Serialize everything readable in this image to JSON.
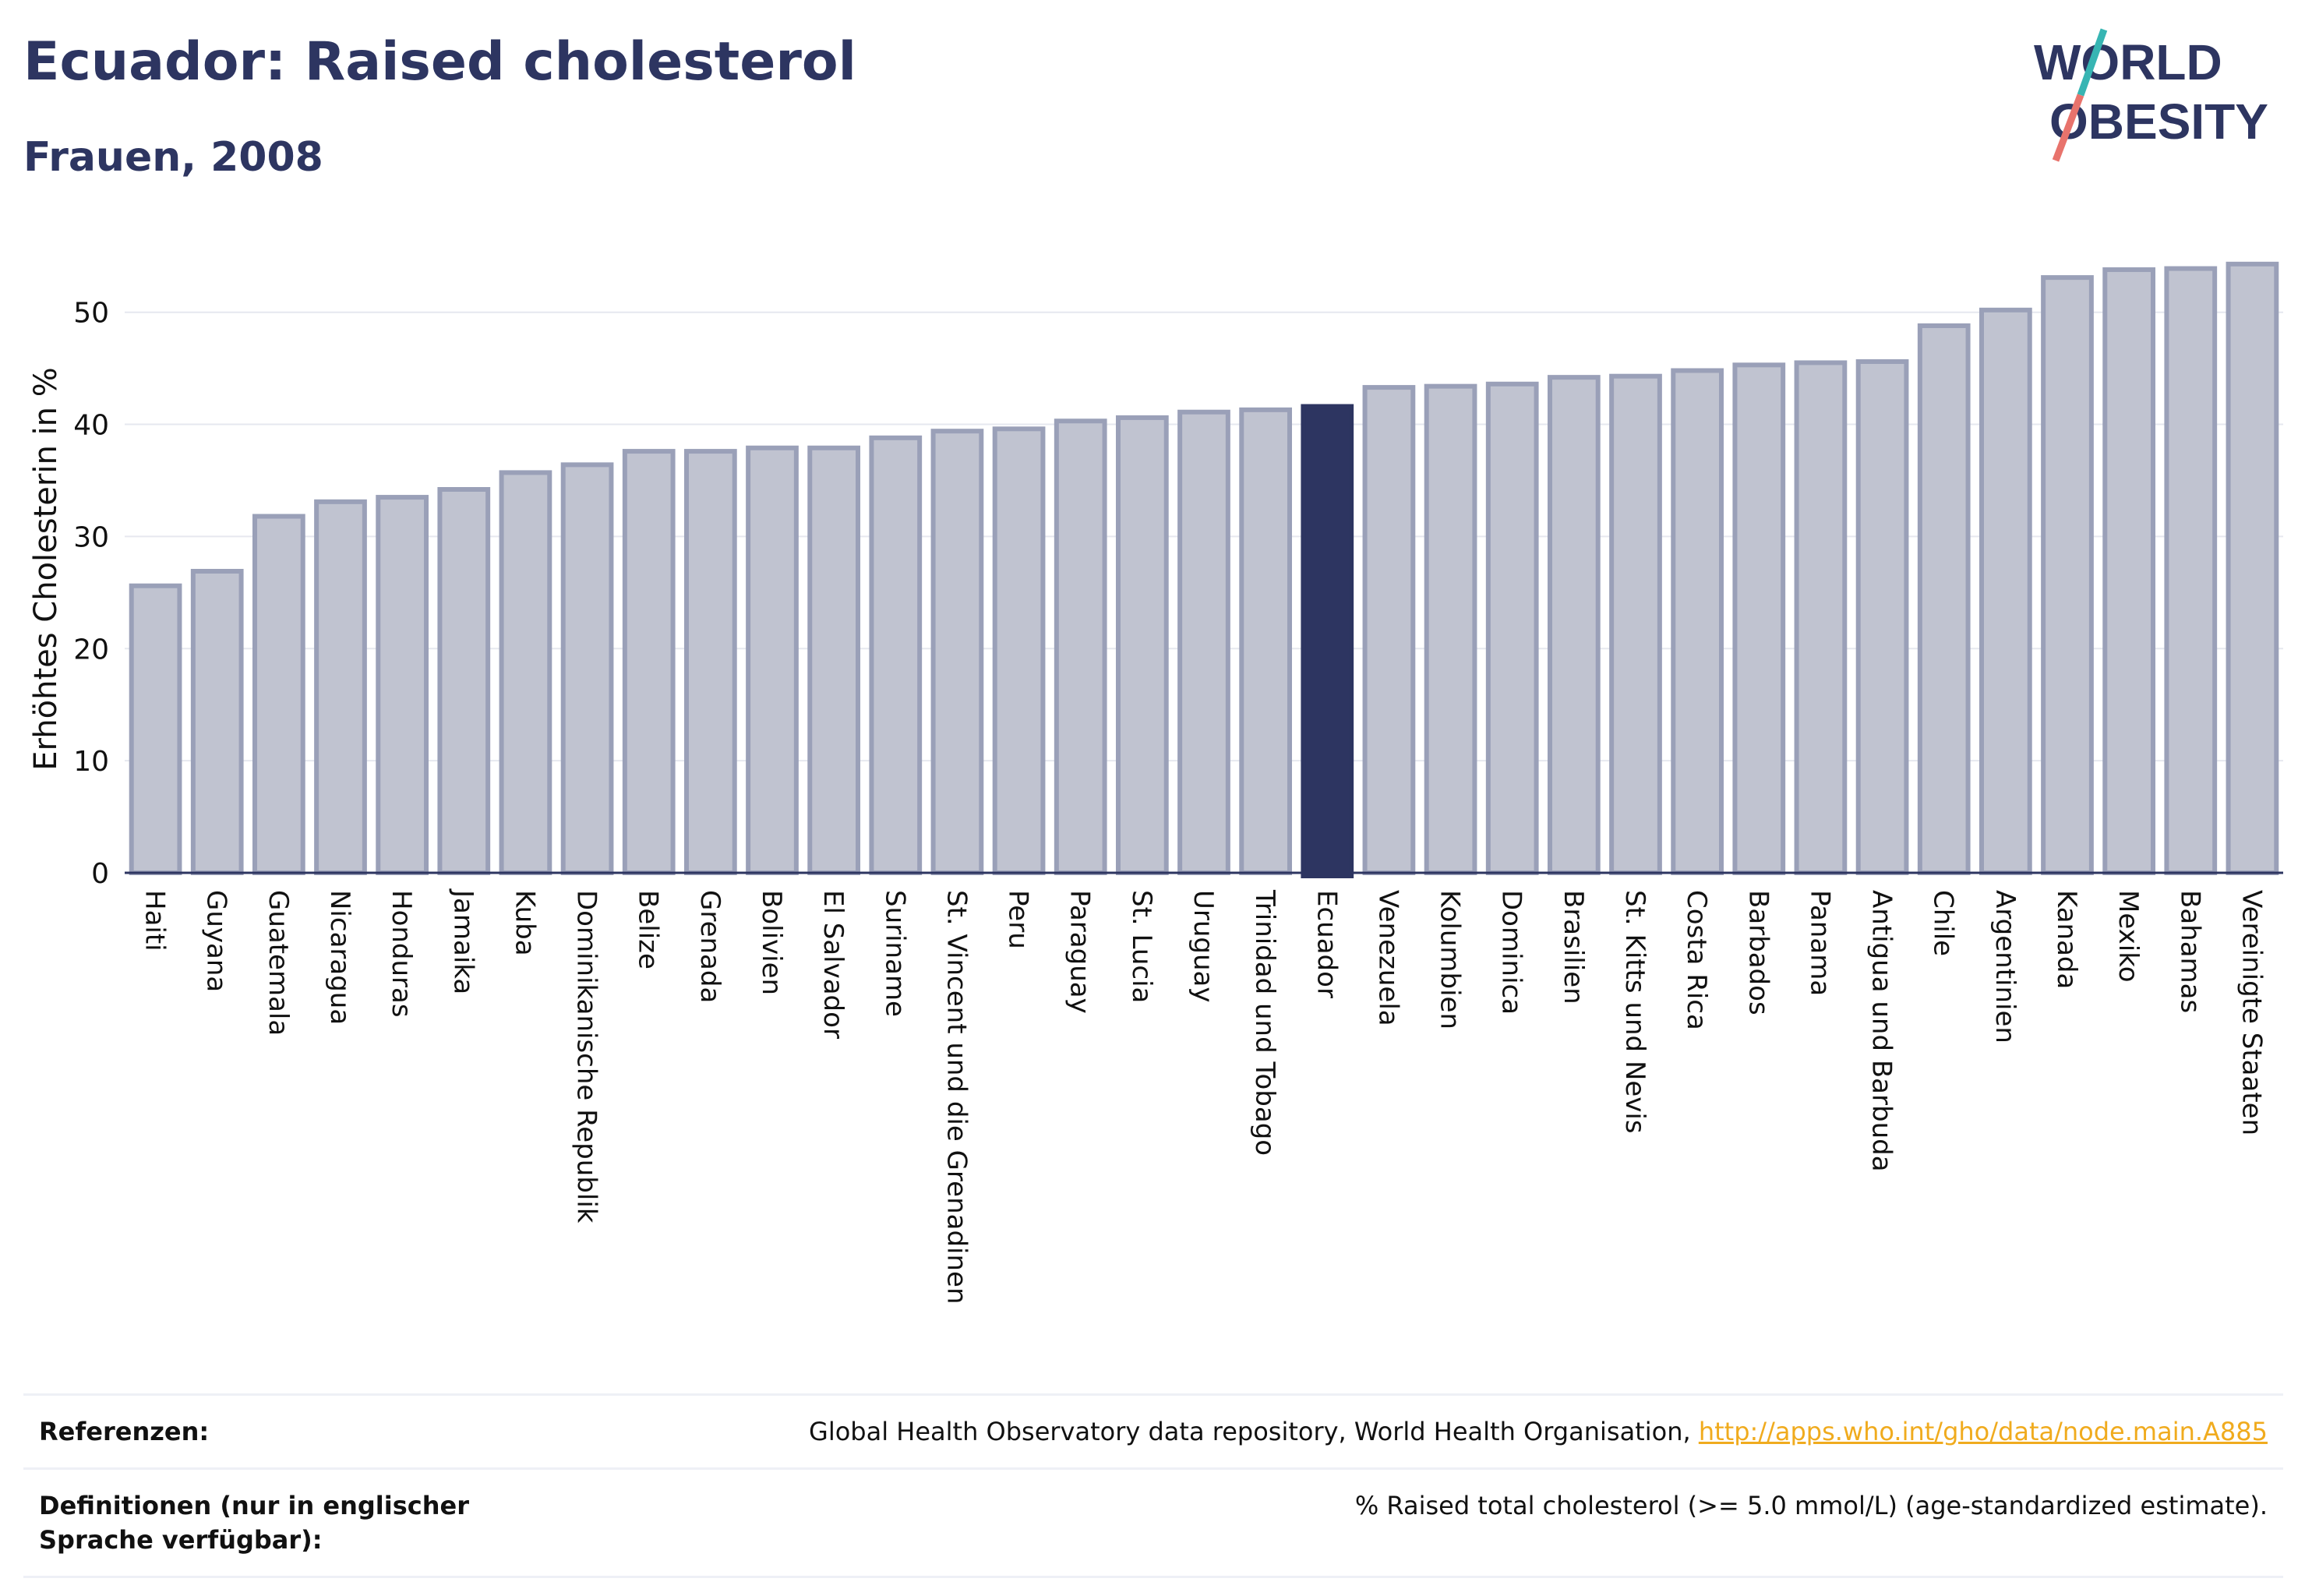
{
  "header": {
    "title": "Ecuador: Raised cholesterol",
    "subtitle": "Frauen, 2008"
  },
  "logo": {
    "line1": "WORLD",
    "line2": "OBESITY",
    "slash_colors": [
      "#37b5b3",
      "#e8736c"
    ]
  },
  "colors": {
    "bar": "#c0c3d0",
    "bar_border": "#9aa0b8",
    "highlight": "#2d3561",
    "text": "#2d3561",
    "grid": "#e6e8ef",
    "link": "#f0ab1e"
  },
  "chart_data": {
    "type": "bar",
    "ylabel": "Erhöhtes Cholesterin in %",
    "ylim": [
      0,
      57
    ],
    "yticks": [
      0,
      10,
      20,
      30,
      40,
      50
    ],
    "highlight": "Ecuador",
    "categories": [
      "Haiti",
      "Guyana",
      "Guatemala",
      "Nicaragua",
      "Honduras",
      "Jamaika",
      "Kuba",
      "Dominikanische Republik",
      "Belize",
      "Grenada",
      "Bolivien",
      "El Salvador",
      "Suriname",
      "St. Vincent und die Grenadinen",
      "Peru",
      "Paraguay",
      "St. Lucia",
      "Uruguay",
      "Trinidad und Tobago",
      "Ecuador",
      "Venezuela",
      "Kolumbien",
      "Dominica",
      "Brasilien",
      "St. Kitts und Nevis",
      "Costa Rica",
      "Barbados",
      "Panama",
      "Antigua und Barbuda",
      "Chile",
      "Argentinien",
      "Kanada",
      "Mexiko",
      "Bahamas",
      "Vereinigte Staaten"
    ],
    "values": [
      25.6,
      26.9,
      31.8,
      33.1,
      33.5,
      34.2,
      35.7,
      36.4,
      37.6,
      37.6,
      37.9,
      37.9,
      38.8,
      39.4,
      39.6,
      40.3,
      40.6,
      41.1,
      41.3,
      41.6,
      43.3,
      43.4,
      43.6,
      44.2,
      44.3,
      44.8,
      45.3,
      45.5,
      45.6,
      48.8,
      50.2,
      53.1,
      53.8,
      53.9,
      54.3
    ]
  },
  "references": {
    "ref_label": "Referenzen:",
    "ref_text": "Global Health Observatory data repository, World Health Organisation,",
    "ref_link": "http://apps.who.int/gho/data/node.main.A885",
    "def_label": "Definitionen (nur in englischer Sprache verfügbar):",
    "def_text": "% Raised total cholesterol (>= 5.0 mmol/L) (age-standardized estimate)."
  }
}
